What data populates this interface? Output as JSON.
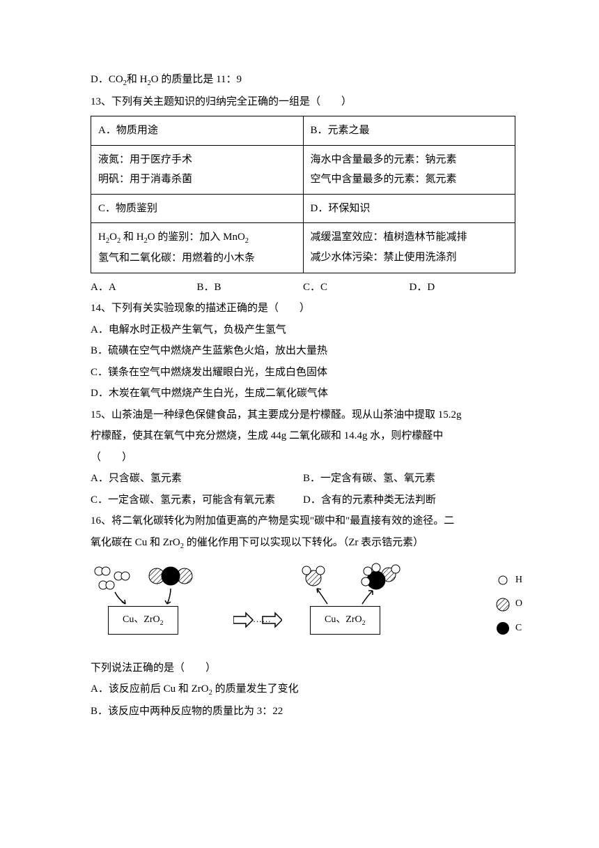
{
  "q12_d": "D．CO₂和 H₂O 的质量比是 11：9",
  "q13": {
    "stem": "13、下列有关主题知识的归纳完全正确的一组是（　　）",
    "cells": {
      "a_head": "A．物质用途",
      "b_head": "B．元素之最",
      "a_body1": "液氮：用于医疗手术",
      "a_body2": "明矾：用于消毒杀菌",
      "b_body1": "海水中含量最多的元素：钠元素",
      "b_body2": "空气中含量最多的元素：氮元素",
      "c_head": "C．物质鉴别",
      "d_head": "D．环保知识",
      "c_body1": "H₂O₂ 和 H₂O 的鉴别：加入 MnO₂",
      "c_body2": "氢气和二氧化碳：用燃着的小木条",
      "d_body1": "减缓温室效应：植树造林节能减排",
      "d_body2": "减少水体污染：禁止使用洗涤剂"
    },
    "opts": {
      "a": "A．A",
      "b": "B．B",
      "c": "C．C",
      "d": "D．D"
    }
  },
  "q14": {
    "stem": "14、下列有关实验现象的描述正确的是（　　）",
    "a": "A．电解水时正极产生氧气，负极产生氢气",
    "b": "B．硫磺在空气中燃烧产生蓝紫色火焰，放出大量热",
    "c": "C．镁条在空气中燃烧发出耀眼白光，生成白色固体",
    "d": "D．木炭在氧气中燃烧产生白光，生成二氧化碳气体"
  },
  "q15": {
    "stem1": "15、山茶油是一种绿色保健食品，其主要成分是柠檬醛。现从山茶油中提取 15.2g",
    "stem2": "柠檬醛，使其在氧气中充分燃烧，生成 44g 二氧化碳和 14.4g 水，则柠檬醛中",
    "stem3": "（　　）",
    "a": "A．只含碳、氢元素",
    "b": "B．一定含有碳、氢、氧元素",
    "c": "C．一定含碳、氢元素，可能含有氧元素",
    "d": "D．含有的元素种类无法判断"
  },
  "q16": {
    "stem1": "16、将二氧化碳转化为附加值更高的产物是实现\"碳中和\"最直接有效的途径。二",
    "stem2": "氧化碳在 Cu 和 ZrO₂ 的催化作用下可以实现以下转化。（Zr 表示锆元素）",
    "catalyst": "Cu、ZrO₂",
    "arrow_dots": "……",
    "legend": {
      "h": "H",
      "o": "O",
      "c": "C"
    },
    "after": "下列说法正确的是（　　）",
    "a": "A．该反应前后 Cu 和 ZrO₂ 的质量发生了变化",
    "b": "B．该反应中两种反应物的质量比为 3：22"
  },
  "colors": {
    "text": "#000000",
    "bg": "#ffffff",
    "border": "#000000",
    "hatch": "#000000"
  }
}
